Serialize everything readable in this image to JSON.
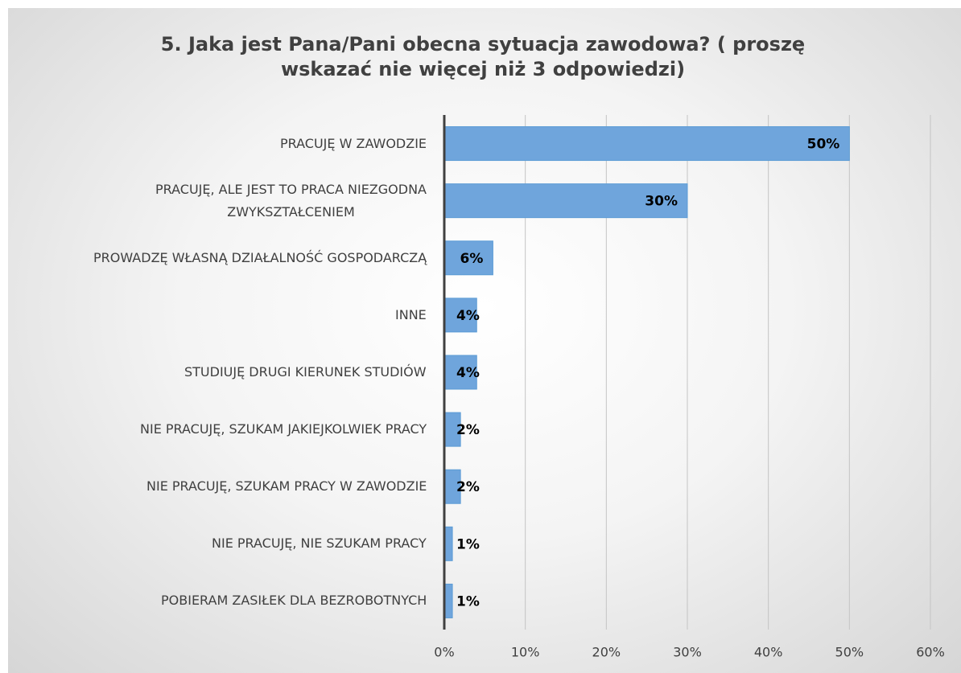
{
  "chart_data": {
    "type": "bar",
    "orientation": "horizontal",
    "title": "5. Jaka jest Pana/Pani obecna sytuacja zawodowa? ( proszę wskazać nie więcej niż 3 odpowiedzi)",
    "categories": [
      "PRACUJĘ W ZAWODZIE",
      "PRACUJĘ, ALE JEST TO PRACA NIEZGODNA\nZWYKSZTAŁCENIEM",
      "PROWADZĘ WŁASNĄ DZIAŁALNOŚĆ GOSPODARCZĄ",
      "INNE",
      "STUDIUJĘ DRUGI KIERUNEK STUDIÓW",
      "NIE PRACUJĘ, SZUKAM JAKIEJKOLWIEK PRACY",
      "NIE PRACUJĘ, SZUKAM PRACY W ZAWODZIE",
      "NIE PRACUJĘ, NIE SZUKAM PRACY",
      "POBIERAM ZASIŁEK DLA BEZROBOTNYCH"
    ],
    "values": [
      50,
      30,
      6,
      4,
      4,
      2,
      2,
      1,
      1
    ],
    "value_labels": [
      "50%",
      "30%",
      "6%",
      "4%",
      "4%",
      "2%",
      "2%",
      "1%",
      "1%"
    ],
    "color": "#6fa5dc",
    "xlim": [
      0,
      60
    ],
    "xticks": [
      {
        "value": 0,
        "label": "0%"
      },
      {
        "value": 10,
        "label": "10%"
      },
      {
        "value": 20,
        "label": "20%"
      },
      {
        "value": 30,
        "label": "30%"
      },
      {
        "value": 40,
        "label": "40%"
      },
      {
        "value": 50,
        "label": "50%"
      },
      {
        "value": 60,
        "label": "60%"
      }
    ],
    "grid": true
  }
}
